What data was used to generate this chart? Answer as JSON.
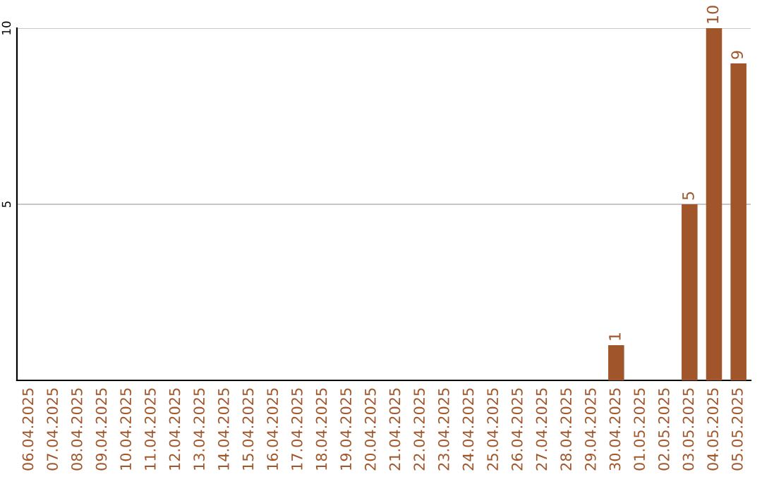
{
  "chart_data": {
    "type": "bar",
    "categories": [
      "06.04.2025",
      "07.04.2025",
      "08.04.2025",
      "09.04.2025",
      "10.04.2025",
      "11.04.2025",
      "12.04.2025",
      "13.04.2025",
      "14.04.2025",
      "15.04.2025",
      "16.04.2025",
      "17.04.2025",
      "18.04.2025",
      "19.04.2025",
      "20.04.2025",
      "21.04.2025",
      "22.04.2025",
      "23.04.2025",
      "24.04.2025",
      "25.04.2025",
      "26.04.2025",
      "27.04.2025",
      "28.04.2025",
      "29.04.2025",
      "30.04.2025",
      "01.05.2025",
      "02.05.2025",
      "03.05.2025",
      "04.05.2025",
      "05.05.2025"
    ],
    "values": [
      0,
      0,
      0,
      0,
      0,
      0,
      0,
      0,
      0,
      0,
      0,
      0,
      0,
      0,
      0,
      0,
      0,
      0,
      0,
      0,
      0,
      0,
      0,
      0,
      1,
      0,
      0,
      5,
      10,
      9
    ],
    "value_labels": [
      null,
      null,
      null,
      null,
      null,
      null,
      null,
      null,
      null,
      null,
      null,
      null,
      null,
      null,
      null,
      null,
      null,
      null,
      null,
      null,
      null,
      null,
      null,
      null,
      "1",
      null,
      null,
      "5",
      "10",
      "9"
    ],
    "color": "#a0562a",
    "ylim": [
      0,
      10
    ],
    "yticks": [
      5,
      10
    ],
    "grid": "y",
    "legend": false
  }
}
